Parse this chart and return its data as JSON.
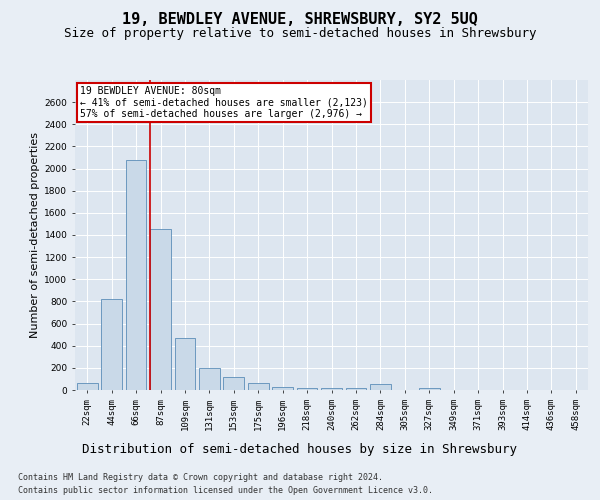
{
  "title": "19, BEWDLEY AVENUE, SHREWSBURY, SY2 5UQ",
  "subtitle": "Size of property relative to semi-detached houses in Shrewsbury",
  "xlabel": "Distribution of semi-detached houses by size in Shrewsbury",
  "ylabel": "Number of semi-detached properties",
  "categories": [
    "22sqm",
    "44sqm",
    "66sqm",
    "87sqm",
    "109sqm",
    "131sqm",
    "153sqm",
    "175sqm",
    "196sqm",
    "218sqm",
    "240sqm",
    "262sqm",
    "284sqm",
    "305sqm",
    "327sqm",
    "349sqm",
    "371sqm",
    "393sqm",
    "414sqm",
    "436sqm",
    "458sqm"
  ],
  "values": [
    60,
    820,
    2080,
    1450,
    470,
    200,
    120,
    60,
    30,
    20,
    20,
    20,
    50,
    0,
    20,
    0,
    0,
    0,
    0,
    0,
    0
  ],
  "bar_color": "#c9d9e8",
  "bar_edge_color": "#5b8db8",
  "red_line_label": "19 BEWDLEY AVENUE: 80sqm",
  "annotation_smaller": "← 41% of semi-detached houses are smaller (2,123)",
  "annotation_larger": "57% of semi-detached houses are larger (2,976) →",
  "red_line_color": "#cc0000",
  "background_color": "#e8eef5",
  "plot_bg_color": "#dde6f0",
  "grid_color": "#ffffff",
  "ylim": [
    0,
    2800
  ],
  "yticks": [
    0,
    200,
    400,
    600,
    800,
    1000,
    1200,
    1400,
    1600,
    1800,
    2000,
    2200,
    2400,
    2600
  ],
  "red_line_x": 2.57,
  "title_fontsize": 11,
  "subtitle_fontsize": 9,
  "tick_fontsize": 6.5,
  "ylabel_fontsize": 8,
  "xlabel_fontsize": 9,
  "annotation_fontsize": 7,
  "footer_fontsize": 6,
  "footer_line1": "Contains HM Land Registry data © Crown copyright and database right 2024.",
  "footer_line2": "Contains public sector information licensed under the Open Government Licence v3.0."
}
